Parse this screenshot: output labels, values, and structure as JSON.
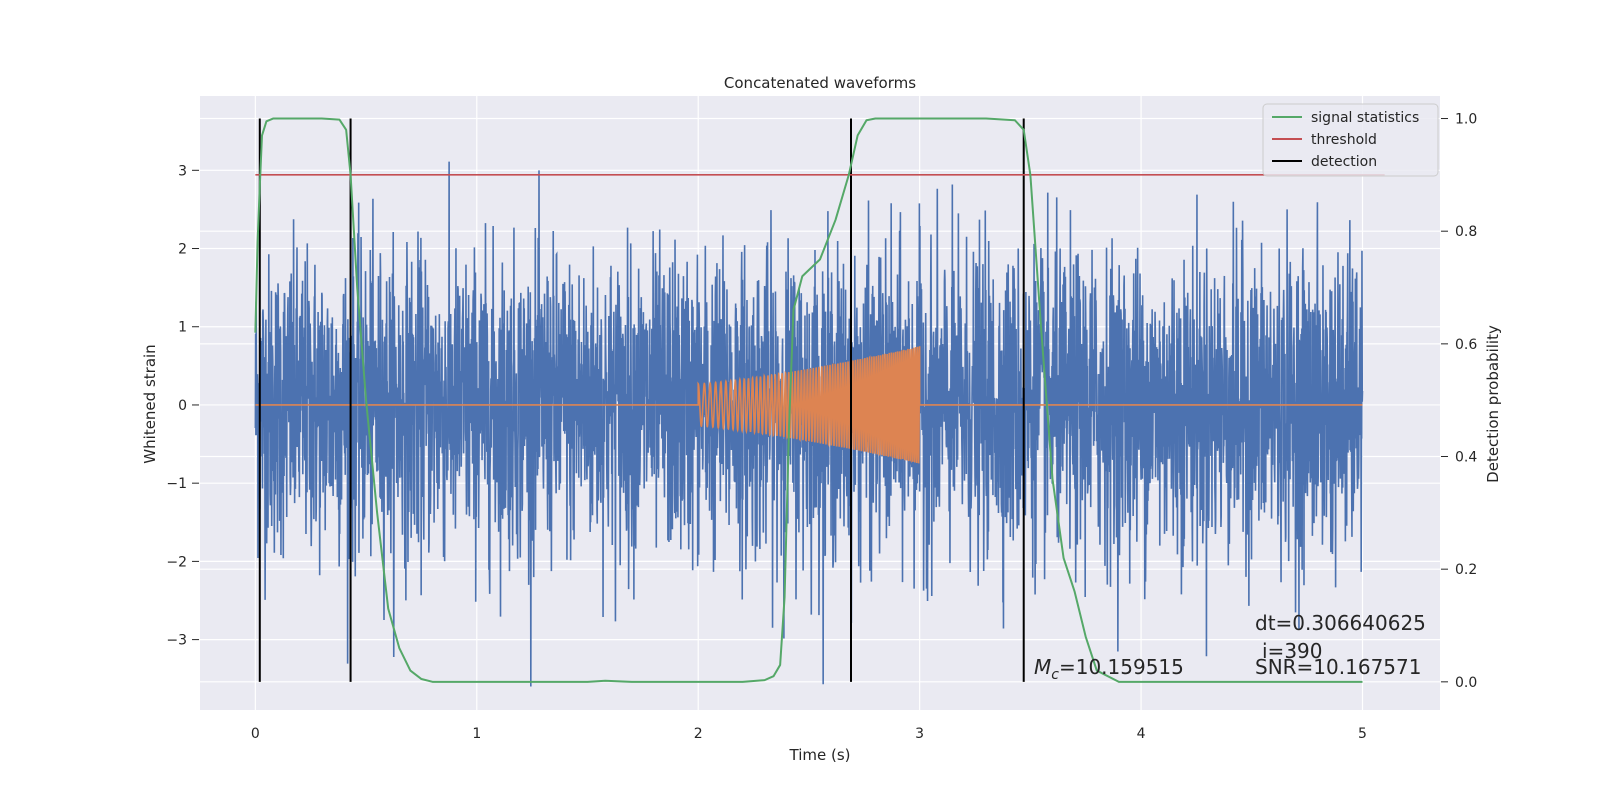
{
  "chart_data": {
    "type": "line",
    "title": "Concatenated waveforms",
    "xlabel": "Time (s)",
    "ylabel_left": "Whitened strain",
    "ylabel_right": "Detection probability",
    "xlim": [
      -0.25,
      5.35
    ],
    "ylim_left": [
      -3.9,
      3.95
    ],
    "ylim_right": [
      -0.05,
      1.04
    ],
    "grid": true,
    "legend_position": "top-right",
    "x_ticks": [
      0,
      1,
      2,
      3,
      4,
      5
    ],
    "x_tick_labels": [
      "0",
      "1",
      "2",
      "3",
      "4",
      "5"
    ],
    "y_left_ticks": [
      -3,
      -2,
      -1,
      0,
      1,
      2,
      3
    ],
    "y_left_tick_labels": [
      "−3",
      "−2",
      "−1",
      "0",
      "1",
      "2",
      "3"
    ],
    "y_right_ticks": [
      0.0,
      0.2,
      0.4,
      0.6,
      0.8,
      1.0
    ],
    "y_right_tick_labels": [
      "0.0",
      "0.2",
      "0.4",
      "0.6",
      "0.8",
      "1.0"
    ],
    "series": [
      {
        "name": "signal statistics",
        "axis": "right",
        "color": "#55a868",
        "x": [
          0.0,
          0.01,
          0.02,
          0.03,
          0.05,
          0.08,
          0.12,
          0.2,
          0.3,
          0.38,
          0.41,
          0.43,
          0.46,
          0.5,
          0.55,
          0.6,
          0.65,
          0.7,
          0.75,
          0.8,
          1.0,
          1.5,
          1.58,
          1.7,
          2.0,
          2.2,
          2.3,
          2.34,
          2.37,
          2.39,
          2.41,
          2.43,
          2.47,
          2.55,
          2.62,
          2.68,
          2.72,
          2.76,
          2.8,
          3.0,
          3.3,
          3.43,
          3.47,
          3.5,
          3.55,
          3.6,
          3.65,
          3.7,
          3.75,
          3.8,
          3.9,
          4.5,
          5.0
        ],
        "y": [
          0.62,
          0.78,
          0.88,
          0.97,
          0.995,
          1.0,
          1.0,
          1.0,
          1.0,
          0.998,
          0.98,
          0.9,
          0.7,
          0.5,
          0.3,
          0.13,
          0.06,
          0.02,
          0.005,
          0.0,
          0.0,
          0.0,
          0.002,
          0.0,
          0.0,
          0.0,
          0.003,
          0.01,
          0.03,
          0.15,
          0.45,
          0.66,
          0.72,
          0.75,
          0.82,
          0.9,
          0.97,
          0.997,
          1.0,
          1.0,
          1.0,
          0.997,
          0.98,
          0.9,
          0.62,
          0.36,
          0.22,
          0.16,
          0.08,
          0.02,
          0.0,
          0.0,
          0.0
        ]
      },
      {
        "name": "threshold",
        "axis": "right",
        "color": "#c44e52",
        "x": [
          0.0,
          5.1
        ],
        "y": [
          0.9,
          0.9
        ]
      },
      {
        "name": "detection",
        "axis": "right",
        "color": "#000000",
        "vertical_lines_x": [
          0.02,
          0.43,
          2.69,
          3.47
        ],
        "y_range": [
          0.0,
          1.0
        ]
      },
      {
        "axis": "left",
        "color": "#4c72b0",
        "description_values": "whitened noise strain sampled over 0–5 s, roughly ±1 with spikes to about ±3.5",
        "x_range": [
          0.0,
          5.0
        ],
        "amplitude_core": 0.8,
        "amplitude_peak": 3.6
      },
      {
        "axis": "left",
        "color": "#dd8452",
        "description_values": "chirp signal from 2.0 s to 3.0 s, amplitude growing from about 0.27 to 0.75, zero elsewhere",
        "x_range": [
          0.0,
          5.0
        ],
        "chirp_start": 2.0,
        "chirp_end": 3.0,
        "chirp_amp_start": 0.27,
        "chirp_amp_end": 0.75
      }
    ],
    "annotations": {
      "mc": "=10.159515",
      "dt": "dt=0.306640625",
      "i": "i=390",
      "snr": "SNR=10.167571"
    }
  },
  "legend": {
    "items": [
      {
        "label": "signal statistics",
        "color": "#55a868"
      },
      {
        "label": "threshold",
        "color": "#c44e52"
      },
      {
        "label": "detection",
        "color": "#000000"
      }
    ]
  },
  "colors": {
    "axes_background": "#eaeaf2",
    "grid": "#ffffff"
  }
}
